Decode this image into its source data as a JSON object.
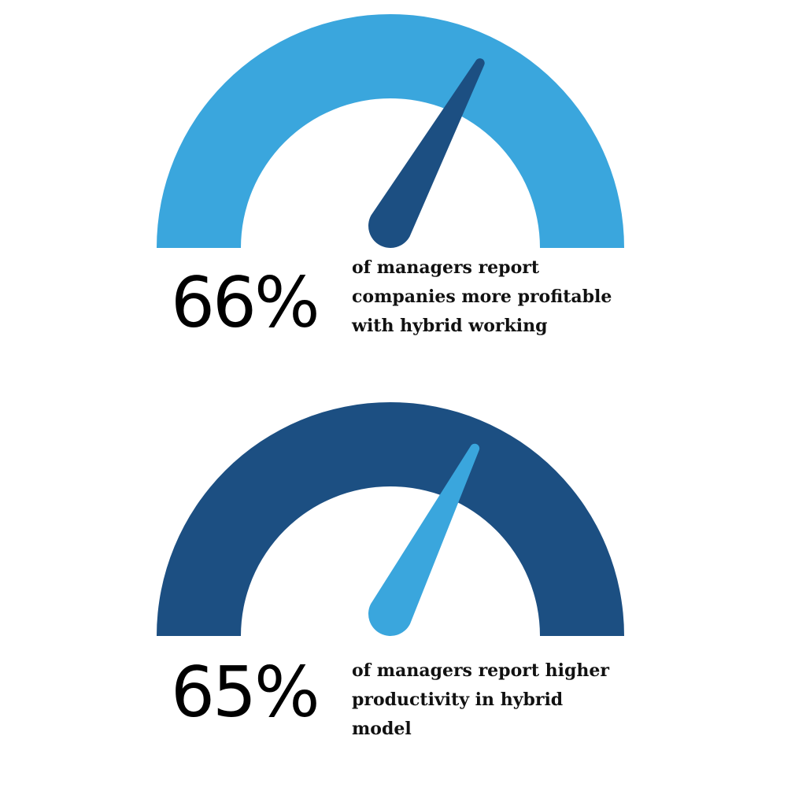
{
  "chart_data": [
    {
      "type": "gauge",
      "values": [
        66
      ],
      "value_labels": [
        "66%"
      ],
      "ylim": [
        0,
        100
      ],
      "caption": "of managers report companies more profitable with hybrid working",
      "color": "#3aa6dd",
      "needle_color": "#1c4f82"
    },
    {
      "type": "gauge",
      "values": [
        65
      ],
      "value_labels": [
        "65%"
      ],
      "ylim": [
        0,
        100
      ],
      "caption": "of managers report higher productivity in hybrid model",
      "color": "#1c4f82",
      "needle_color": "#3aa6dd"
    }
  ]
}
